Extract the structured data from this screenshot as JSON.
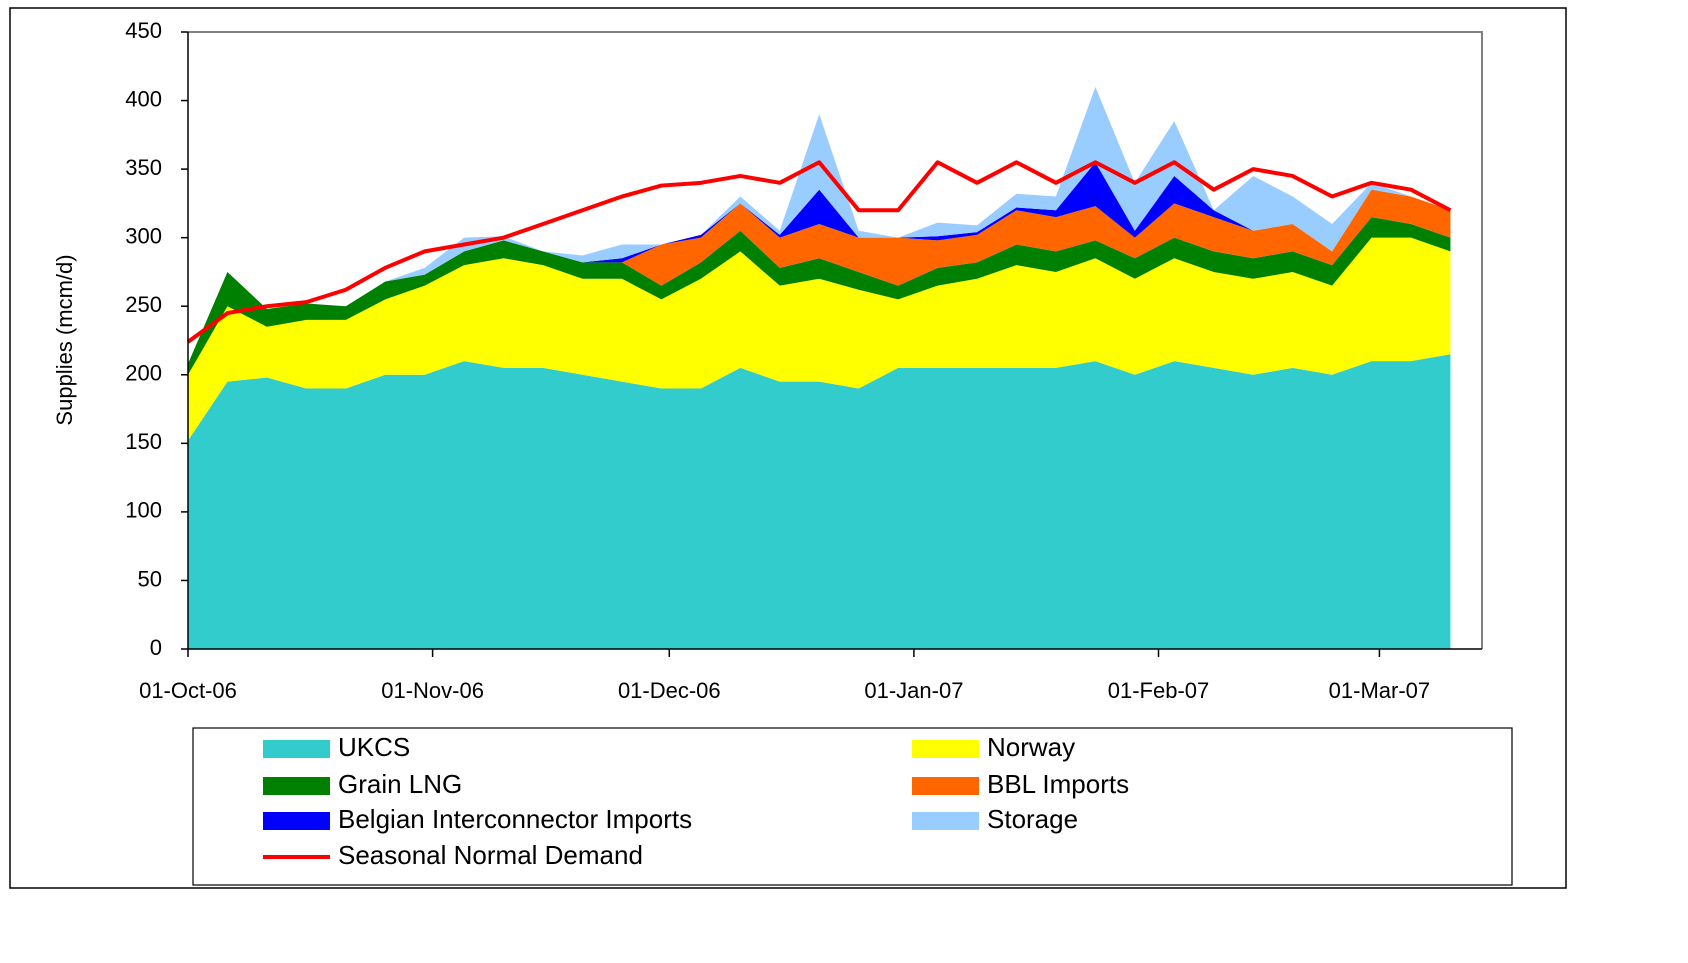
{
  "chart_data": {
    "type": "stacked_area",
    "y_label": "Supplies (mcm/d)",
    "ylim": [
      0,
      450
    ],
    "yticks": [
      0,
      50,
      100,
      150,
      200,
      250,
      300,
      350,
      400,
      450
    ],
    "xlim": [
      "2006-10-01",
      "2007-03-14"
    ],
    "xticks": [
      {
        "value": "2006-10-01",
        "label": "01-Oct-06"
      },
      {
        "value": "2006-11-01",
        "label": "01-Nov-06"
      },
      {
        "value": "2006-12-01",
        "label": "01-Dec-06"
      },
      {
        "value": "2007-01-01",
        "label": "01-Jan-07"
      },
      {
        "value": "2007-02-01",
        "label": "01-Feb-07"
      },
      {
        "value": "2007-03-01",
        "label": "01-Mar-07"
      }
    ],
    "x": [
      "2006-10-01",
      "2006-10-06",
      "2006-10-11",
      "2006-10-16",
      "2006-10-21",
      "2006-10-26",
      "2006-10-31",
      "2006-11-05",
      "2006-11-10",
      "2006-11-15",
      "2006-11-20",
      "2006-11-25",
      "2006-11-30",
      "2006-12-05",
      "2006-12-10",
      "2006-12-15",
      "2006-12-20",
      "2006-12-25",
      "2006-12-30",
      "2007-01-04",
      "2007-01-09",
      "2007-01-14",
      "2007-01-19",
      "2007-01-24",
      "2007-01-29",
      "2007-02-03",
      "2007-02-08",
      "2007-02-13",
      "2007-02-18",
      "2007-02-23",
      "2007-02-28",
      "2007-03-05",
      "2007-03-10"
    ],
    "series": [
      {
        "name": "UKCS",
        "type": "area",
        "color": "#33cccc",
        "values": [
          152,
          195,
          198,
          190,
          190,
          200,
          200,
          210,
          205,
          205,
          200,
          195,
          190,
          190,
          205,
          195,
          195,
          190,
          205,
          205,
          205,
          205,
          205,
          210,
          200,
          210,
          205,
          200,
          205,
          200,
          210,
          210,
          215
        ]
      },
      {
        "name": "Norway",
        "type": "area",
        "color": "#ffff00",
        "values": [
          48,
          55,
          37,
          50,
          50,
          55,
          65,
          70,
          80,
          75,
          70,
          75,
          65,
          80,
          85,
          70,
          75,
          72,
          50,
          60,
          65,
          75,
          70,
          75,
          70,
          75,
          70,
          70,
          70,
          65,
          90,
          90,
          75
        ]
      },
      {
        "name": "Grain LNG",
        "type": "area",
        "color": "#008000",
        "values": [
          8,
          25,
          13,
          12,
          10,
          13,
          8,
          10,
          13,
          10,
          12,
          12,
          10,
          12,
          15,
          13,
          15,
          13,
          10,
          13,
          12,
          15,
          15,
          13,
          15,
          15,
          15,
          15,
          15,
          15,
          15,
          10,
          10
        ]
      },
      {
        "name": "BBL Imports",
        "type": "area",
        "color": "#ff6600",
        "values": [
          0,
          0,
          0,
          0,
          0,
          0,
          0,
          0,
          0,
          0,
          0,
          0,
          30,
          18,
          20,
          22,
          25,
          25,
          35,
          20,
          20,
          25,
          25,
          25,
          15,
          25,
          25,
          20,
          20,
          10,
          20,
          20,
          20
        ]
      },
      {
        "name": "Belgian Interconnector Imports",
        "type": "area",
        "color": "#0000ff",
        "values": [
          0,
          0,
          0,
          0,
          0,
          0,
          0,
          0,
          0,
          0,
          0,
          3,
          0,
          2,
          0,
          2,
          25,
          0,
          0,
          3,
          2,
          2,
          5,
          32,
          5,
          20,
          5,
          0,
          0,
          0,
          0,
          0,
          0
        ]
      },
      {
        "name": "Storage",
        "type": "area",
        "color": "#99ccff",
        "values": [
          0,
          0,
          0,
          0,
          0,
          0,
          5,
          10,
          3,
          0,
          5,
          10,
          0,
          0,
          5,
          3,
          55,
          5,
          0,
          10,
          5,
          10,
          10,
          55,
          35,
          40,
          0,
          40,
          20,
          20,
          5,
          0,
          0
        ]
      },
      {
        "name": "Seasonal Normal Demand",
        "type": "line",
        "color": "#ff0000",
        "values": [
          224,
          245,
          250,
          253,
          262,
          278,
          290,
          295,
          300,
          310,
          320,
          330,
          338,
          340,
          345,
          340,
          355,
          320,
          320,
          355,
          340,
          355,
          340,
          355,
          340,
          355,
          335,
          350,
          345,
          330,
          340,
          335,
          320
        ]
      }
    ]
  }
}
